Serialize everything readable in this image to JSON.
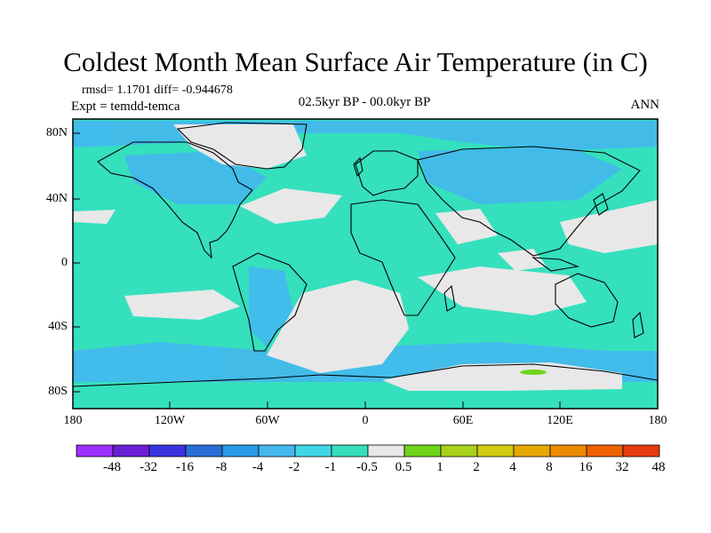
{
  "title": "Coldest Month Mean Surface Air Temperature (in C)",
  "stats": "rmsd= 1.1701 diff= -0.944678",
  "experiment": "Expt = temdd-temca",
  "period": "02.5kyr BP - 00.0kyr BP",
  "season": "ANN",
  "lat_labels": [
    "80N",
    "40N",
    "0",
    "40S",
    "80S"
  ],
  "lon_labels": [
    "180",
    "120W",
    "60W",
    "0",
    "60E",
    "120E",
    "180"
  ],
  "colorbar": {
    "colors": [
      "#9b30ff",
      "#6a1fd6",
      "#3a34e0",
      "#2a6fd8",
      "#2a9be8",
      "#44b8ee",
      "#3fd7e7",
      "#35e0bd",
      "#e8e8e8",
      "#6fd41a",
      "#a8d21c",
      "#d3cc10",
      "#e6a800",
      "#ee8a00",
      "#ee6200",
      "#e83a10"
    ],
    "labels": [
      "-48",
      "-32",
      "-16",
      "-8",
      "-4",
      "-2",
      "-1",
      "-0.5",
      "0.5",
      "1",
      "2",
      "4",
      "8",
      "16",
      "32",
      "48"
    ]
  },
  "colors": {
    "ocean": "#35e0bd",
    "land": "#3fd7e7",
    "cold": "#44b8ee",
    "neutral": "#e8e8e8",
    "warm": "#6fd41a"
  }
}
